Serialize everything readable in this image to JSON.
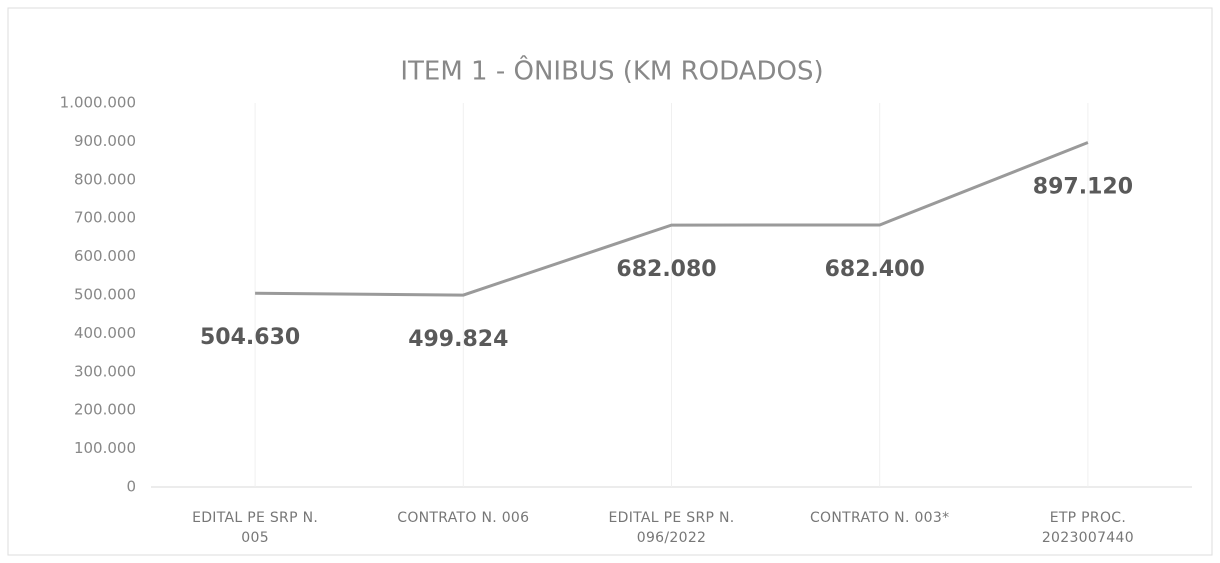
{
  "chart_data": {
    "type": "line",
    "title": "ITEM 1 - ÔNIBUS (KM RODADOS)",
    "categories": [
      "EDITAL PE SRP N. 005",
      "CONTRATO N. 006",
      "EDITAL PE SRP N. 096/2022",
      "CONTRATO N. 003*",
      "ETP PROC. 2023007440"
    ],
    "values": [
      504630,
      499824,
      682080,
      682400,
      897120
    ],
    "value_labels": [
      "504.630",
      "499.824",
      "682.080",
      "682.400",
      "897.120"
    ],
    "color": "#9a9a9a",
    "ylim": [
      0,
      1000000
    ],
    "yticks": [
      0,
      {
        "value": 100000,
        "label": "100.000"
      },
      {
        "value": 200000,
        "label": "200.000"
      },
      {
        "value": 300000,
        "label": "300.000"
      },
      {
        "value": 400000,
        "label": "400.000"
      },
      {
        "value": 500000,
        "label": "500.000"
      },
      {
        "value": 600000,
        "label": "600.000"
      },
      {
        "value": 700000,
        "label": "700.000"
      },
      {
        "value": 800000,
        "label": "800.000"
      },
      {
        "value": 900000,
        "label": "900.000"
      },
      {
        "value": 1000000,
        "label": "1.000.000"
      }
    ]
  }
}
